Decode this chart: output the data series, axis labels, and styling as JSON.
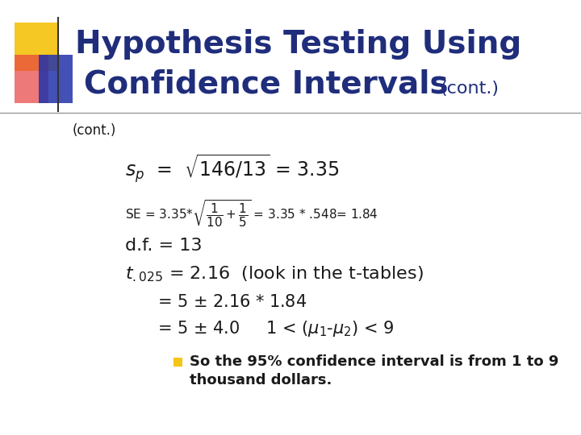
{
  "bg_color": "#ffffff",
  "title_line1": "Hypothesis Testing Using",
  "title_line2": "Confidence Intervals",
  "title_cont": "(cont.)",
  "title_color": "#1F2D7B",
  "title_fontsize": 28,
  "title_cont_fontsize": 16,
  "body_color": "#1a1a1a",
  "cont_label": "(cont.)",
  "bullet_text1": "So the 95% confidence interval is from 1 to 9",
  "bullet_text2": "thousand dollars.",
  "bullet_color": "#F5C518",
  "yellow_color": "#F5C518",
  "red_color": "#E84040",
  "blue_color": "#2233AA",
  "hline_color": "#999999",
  "vline_color": "#333333"
}
